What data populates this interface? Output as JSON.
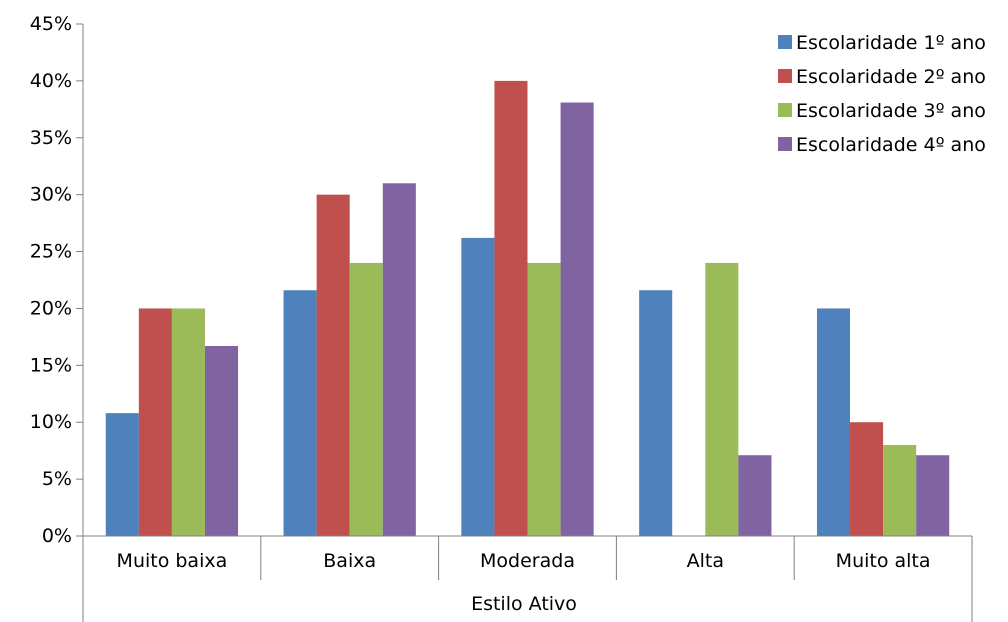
{
  "chart_data": {
    "type": "bar",
    "title": "",
    "xlabel": "Estilo Ativo",
    "ylabel": "",
    "ylim": [
      0,
      45
    ],
    "yticks": [
      0,
      5,
      10,
      15,
      20,
      25,
      30,
      35,
      40,
      45
    ],
    "ytick_labels": [
      "0%",
      "5%",
      "10%",
      "15%",
      "20%",
      "25%",
      "30%",
      "35%",
      "40%",
      "45%"
    ],
    "grid": false,
    "legend_position": "top-right",
    "categories": [
      "Muito baixa",
      "Baixa",
      "Moderada",
      "Alta",
      "Muito alta"
    ],
    "series": [
      {
        "name": "Escolaridade 1º ano",
        "color": "#4F81BD",
        "values": [
          10.8,
          21.6,
          26.2,
          21.6,
          20.0
        ]
      },
      {
        "name": "Escolaridade 2º ano",
        "color": "#C0504D",
        "values": [
          20.0,
          30.0,
          40.0,
          0,
          10.0
        ]
      },
      {
        "name": "Escolaridade 3º ano",
        "color": "#9BBB59",
        "values": [
          20.0,
          24.0,
          24.0,
          24.0,
          8.0
        ]
      },
      {
        "name": "Escolaridade 4º ano",
        "color": "#8064A2",
        "values": [
          16.7,
          31.0,
          38.1,
          7.1,
          7.1
        ]
      }
    ]
  }
}
